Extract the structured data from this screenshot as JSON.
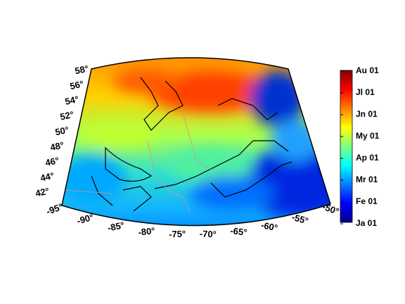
{
  "map": {
    "lat_labels": [
      "42°",
      "44°",
      "46°",
      "48°",
      "50°",
      "52°",
      "54°",
      "56°",
      "58°"
    ],
    "lon_labels": [
      "-95°",
      "-90°",
      "-85°",
      "-80°",
      "-75°",
      "-70°",
      "-65°",
      "-60°",
      "-55°",
      "-50°"
    ]
  },
  "colorbar": {
    "labels": [
      "Ja 01",
      "Fe 01",
      "Mr 01",
      "Ap 01",
      "My 01",
      "Jn 01",
      "Jl 01",
      "Au 01"
    ]
  }
}
